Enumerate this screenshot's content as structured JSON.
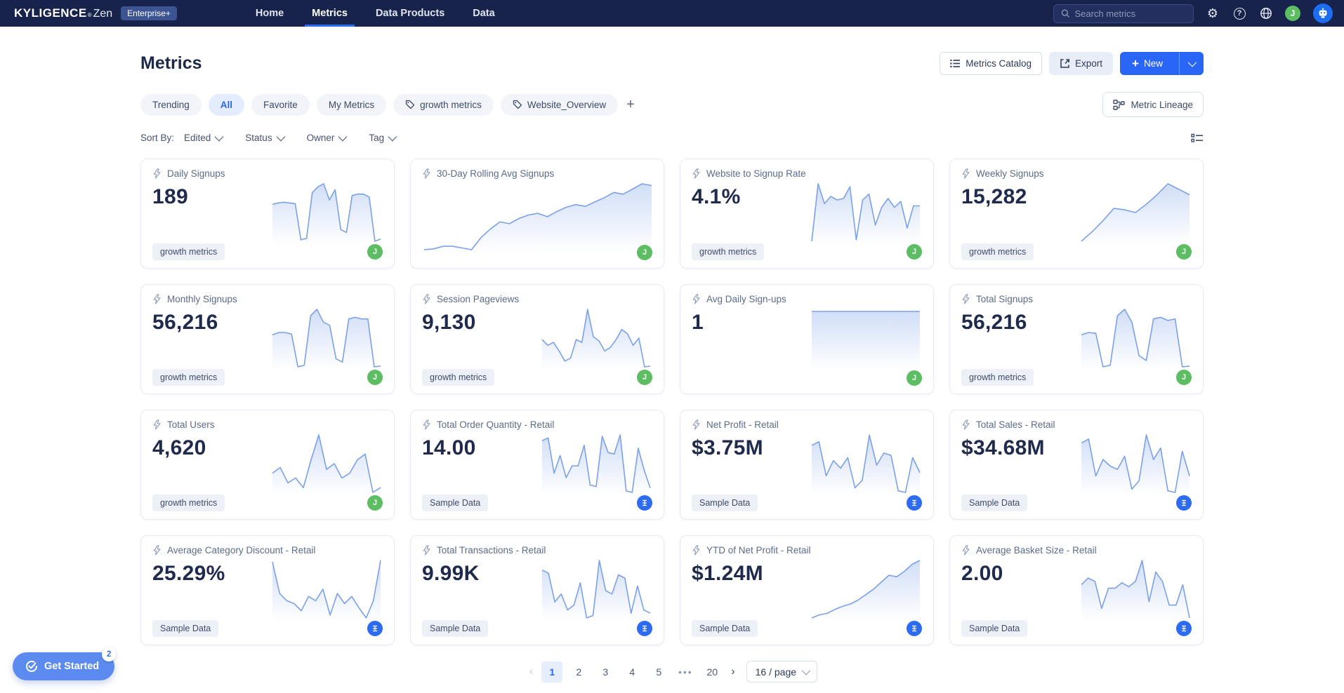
{
  "navbar": {
    "logo_primary": "KYLIGENCE",
    "logo_reg": "®",
    "logo_secondary": "Zen",
    "badge": "Enterprise+",
    "items": [
      {
        "label": "Home",
        "active": false
      },
      {
        "label": "Metrics",
        "active": true
      },
      {
        "label": "Data Products",
        "active": false
      },
      {
        "label": "Data",
        "active": false
      }
    ],
    "search_placeholder": "Search metrics",
    "action_icons": [
      "gear-icon",
      "help-icon",
      "globe-icon"
    ],
    "avatar_initial": "J",
    "assistant_icon": "robot-icon"
  },
  "header": {
    "title": "Metrics",
    "catalog_button": "Metrics Catalog",
    "export_button": "Export",
    "new_button": "New"
  },
  "filters": {
    "tabs": [
      {
        "label": "Trending",
        "active": false,
        "icon": null
      },
      {
        "label": "All",
        "active": true,
        "icon": null
      },
      {
        "label": "Favorite",
        "active": false,
        "icon": null
      },
      {
        "label": "My Metrics",
        "active": false,
        "icon": null
      },
      {
        "label": "growth metrics",
        "active": false,
        "icon": "tag-icon"
      },
      {
        "label": "Website_Overview",
        "active": false,
        "icon": "tag-icon"
      }
    ],
    "add_button": "+",
    "lineage_button": "Metric Lineage"
  },
  "toolbar": {
    "sort_by_label": "Sort By:",
    "sorts": [
      "Edited",
      "Status",
      "Owner",
      "Tag"
    ]
  },
  "cards": [
    {
      "title": "Daily Signups",
      "value": "189",
      "tag": "growth metrics",
      "avatar": {
        "type": "green",
        "text": "J"
      },
      "wide": false,
      "spark": [
        56,
        58,
        59,
        58,
        57,
        8,
        10,
        72,
        80,
        84,
        62,
        76,
        22,
        18,
        68,
        70,
        70,
        66,
        6,
        9
      ]
    },
    {
      "title": "30-Day Rolling Avg Signups",
      "value": null,
      "tag": null,
      "avatar": {
        "type": "green",
        "text": "J"
      },
      "wide": true,
      "spark": [
        8,
        9,
        12,
        12,
        10,
        8,
        22,
        32,
        40,
        38,
        44,
        48,
        50,
        46,
        52,
        57,
        60,
        58,
        63,
        68,
        74,
        72,
        78,
        84,
        82
      ]
    },
    {
      "title": "Website to Signup Rate",
      "value": "4.1%",
      "tag": "growth metrics",
      "avatar": {
        "type": "green",
        "text": "J"
      },
      "wide": false,
      "spark": [
        4,
        82,
        55,
        65,
        60,
        62,
        78,
        6,
        60,
        68,
        26,
        50,
        62,
        50,
        58,
        22,
        52,
        52
      ]
    },
    {
      "title": "Weekly Signups",
      "value": "15,282",
      "tag": "growth metrics",
      "avatar": {
        "type": "green",
        "text": "J"
      },
      "wide": false,
      "spark": [
        4,
        18,
        34,
        52,
        50,
        46,
        58,
        72,
        88,
        80,
        72
      ]
    },
    {
      "title": "Monthly Signups",
      "value": "56,216",
      "tag": "growth metrics",
      "avatar": {
        "type": "green",
        "text": "J"
      },
      "wide": false,
      "spark": [
        46,
        49,
        49,
        47,
        6,
        8,
        70,
        78,
        62,
        58,
        16,
        12,
        66,
        68,
        66,
        66,
        6,
        7
      ]
    },
    {
      "title": "Session Pageviews",
      "value": "9,130",
      "tag": "growth metrics",
      "avatar": {
        "type": "green",
        "text": "J"
      },
      "wide": false,
      "spark": [
        44,
        36,
        40,
        28,
        14,
        18,
        44,
        40,
        86,
        48,
        42,
        28,
        33,
        44,
        58,
        52,
        36,
        46,
        6,
        7
      ]
    },
    {
      "title": "Avg Daily Sign-ups",
      "value": "1",
      "tag": null,
      "avatar": {
        "type": "green",
        "text": "J"
      },
      "wide": false,
      "spark": [
        1,
        1,
        1,
        1,
        1,
        1,
        1,
        1,
        1,
        1
      ]
    },
    {
      "title": "Total Signups",
      "value": "56,216",
      "tag": "growth metrics",
      "avatar": {
        "type": "green",
        "text": "J"
      },
      "wide": false,
      "spark": [
        46,
        49,
        48,
        6,
        8,
        70,
        78,
        62,
        20,
        14,
        66,
        68,
        64,
        66,
        6,
        7
      ]
    },
    {
      "title": "Total Users",
      "value": "4,620",
      "tag": "growth metrics",
      "avatar": {
        "type": "green",
        "text": "J"
      },
      "wide": false,
      "spark": [
        38,
        44,
        28,
        33,
        23,
        52,
        78,
        42,
        48,
        33,
        38,
        52,
        58,
        18,
        23
      ]
    },
    {
      "title": "Total Order Quantity - Retail",
      "value": "14.00",
      "tag": "Sample Data",
      "avatar": {
        "type": "blue",
        "text": "lines"
      },
      "wide": false,
      "spark": [
        72,
        76,
        28,
        52,
        22,
        38,
        38,
        66,
        12,
        10,
        78,
        56,
        54,
        80,
        4,
        2,
        62,
        32,
        8
      ]
    },
    {
      "title": "Net Profit - Retail",
      "value": "$3.75M",
      "tag": "Sample Data",
      "avatar": {
        "type": "blue",
        "text": "lines"
      },
      "wide": false,
      "spark": [
        68,
        73,
        28,
        48,
        38,
        52,
        12,
        22,
        82,
        42,
        58,
        55,
        8,
        6,
        52,
        32
      ]
    },
    {
      "title": "Total Sales - Retail",
      "value": "$34.68M",
      "tag": "Sample Data",
      "avatar": {
        "type": "blue",
        "text": "lines"
      },
      "wide": false,
      "spark": [
        68,
        73,
        28,
        48,
        40,
        36,
        52,
        12,
        22,
        78,
        48,
        62,
        10,
        8,
        58,
        28
      ]
    },
    {
      "title": "Average Category Discount - Retail",
      "value": "25.29%",
      "tag": "Sample Data",
      "avatar": {
        "type": "blue",
        "text": "lines"
      },
      "wide": false,
      "spark": [
        86,
        42,
        32,
        28,
        18,
        38,
        32,
        48,
        12,
        42,
        28,
        38,
        22,
        8,
        32,
        88
      ]
    },
    {
      "title": "Total Transactions - Retail",
      "value": "9.99K",
      "tag": "Sample Data",
      "avatar": {
        "type": "blue",
        "text": "lines"
      },
      "wide": false,
      "spark": [
        72,
        68,
        32,
        42,
        22,
        28,
        56,
        12,
        15,
        84,
        46,
        42,
        66,
        62,
        18,
        52,
        22,
        18
      ]
    },
    {
      "title": "YTD of Net Profit - Retail",
      "value": "$1.24M",
      "tag": "Sample Data",
      "avatar": {
        "type": "blue",
        "text": "lines"
      },
      "wide": false,
      "spark": [
        4,
        8,
        10,
        15,
        19,
        22,
        27,
        34,
        41,
        50,
        59,
        57,
        64,
        73,
        78
      ]
    },
    {
      "title": "Average Basket Size - Retail",
      "value": "2.00",
      "tag": "Sample Data",
      "avatar": {
        "type": "blue",
        "text": "lines"
      },
      "wide": false,
      "spark": [
        52,
        62,
        57,
        17,
        47,
        47,
        55,
        49,
        57,
        88,
        27,
        71,
        57,
        22,
        22,
        52,
        3
      ]
    }
  ],
  "pagination": {
    "items": [
      {
        "label": "1",
        "type": "page",
        "active": true
      },
      {
        "label": "2",
        "type": "page",
        "active": false
      },
      {
        "label": "3",
        "type": "page",
        "active": false
      },
      {
        "label": "4",
        "type": "page",
        "active": false
      },
      {
        "label": "5",
        "type": "page",
        "active": false
      },
      {
        "label": "•••",
        "type": "ellipsis",
        "active": false
      },
      {
        "label": "20",
        "type": "page",
        "active": false
      }
    ],
    "page_size": "16 / page"
  },
  "floating": {
    "label": "Get Started",
    "badge": "2"
  },
  "colors": {
    "navbar_bg": "#17234a",
    "accent_blue": "#2a66f6",
    "spark_line": "#7ba1e8",
    "green_avatar": "#5cbd63",
    "blue_avatar": "#2e6bf0",
    "active_tab_bg": "#e4edff"
  }
}
